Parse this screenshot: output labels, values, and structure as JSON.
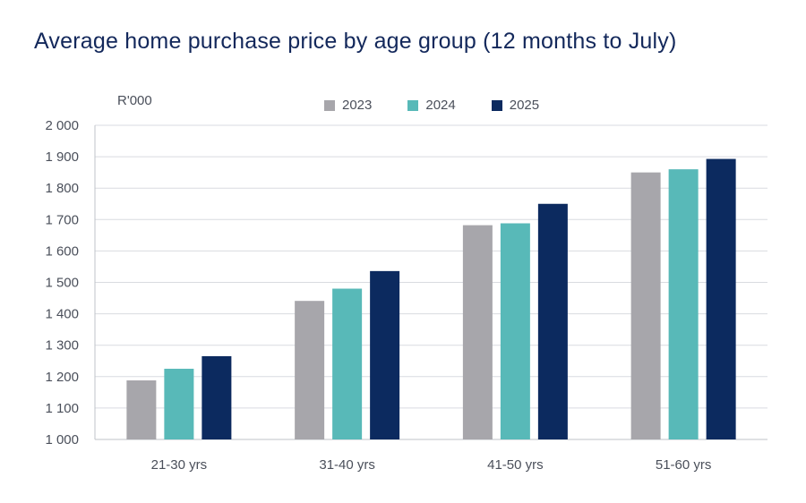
{
  "colors": {
    "title": "#13285b",
    "text": "#4a4f5a",
    "grid": "#d9dbe0",
    "axis": "#bfc3c9",
    "series": [
      "#a7a6ab",
      "#58b9b8",
      "#0c2a5f"
    ]
  },
  "chart_data": {
    "type": "bar",
    "title": "Average home purchase price by age group (12 months to July)",
    "ylabel": "R'000",
    "xlabel": "",
    "categories": [
      "21-30 yrs",
      "31-40 yrs",
      "41-50 yrs",
      "51-60 yrs"
    ],
    "series": [
      {
        "name": "2023",
        "values": [
          1188,
          1441,
          1682,
          1850
        ]
      },
      {
        "name": "2024",
        "values": [
          1225,
          1480,
          1688,
          1860
        ]
      },
      {
        "name": "2025",
        "values": [
          1265,
          1536,
          1750,
          1893
        ]
      }
    ],
    "ylim": [
      1000,
      2000
    ],
    "yticks": [
      1000,
      1100,
      1200,
      1300,
      1400,
      1500,
      1600,
      1700,
      1800,
      1900,
      2000
    ],
    "ytick_labels": [
      "1 000",
      "1 100",
      "1 200",
      "1 300",
      "1 400",
      "1 500",
      "1 600",
      "1 700",
      "1 800",
      "1 900",
      "2 000"
    ],
    "grid": true,
    "legend_position": "top"
  }
}
